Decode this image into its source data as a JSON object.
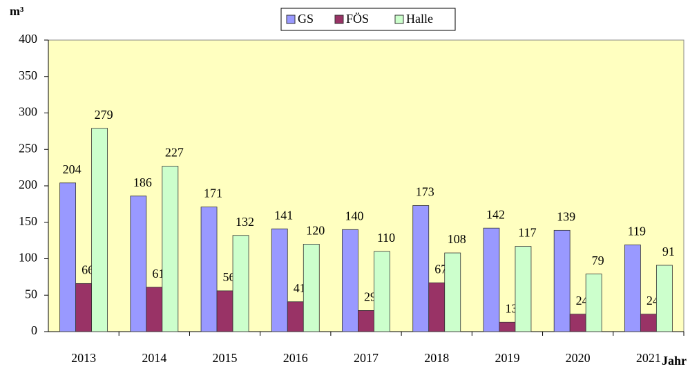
{
  "chart_data": {
    "type": "bar",
    "y_label": "m³",
    "x_label": "Jahr",
    "categories": [
      "2013",
      "2014",
      "2015",
      "2016",
      "2017",
      "2018",
      "2019",
      "2020",
      "2021"
    ],
    "series": [
      {
        "name": "GS",
        "color": "#9999ff",
        "values": [
          204,
          186,
          171,
          141,
          140,
          173,
          142,
          139,
          119
        ]
      },
      {
        "name": "FÖS",
        "color": "#993366",
        "values": [
          66,
          61,
          56,
          41,
          29,
          67,
          13,
          24,
          24
        ]
      },
      {
        "name": "Halle",
        "color": "#ccffcc",
        "values": [
          279,
          227,
          132,
          120,
          110,
          108,
          117,
          79,
          91
        ]
      }
    ],
    "ylim": [
      0,
      400
    ],
    "yticks": [
      0,
      50,
      100,
      150,
      200,
      250,
      300,
      350,
      400
    ],
    "plot_background": "#ffffc0",
    "legend": "top"
  }
}
